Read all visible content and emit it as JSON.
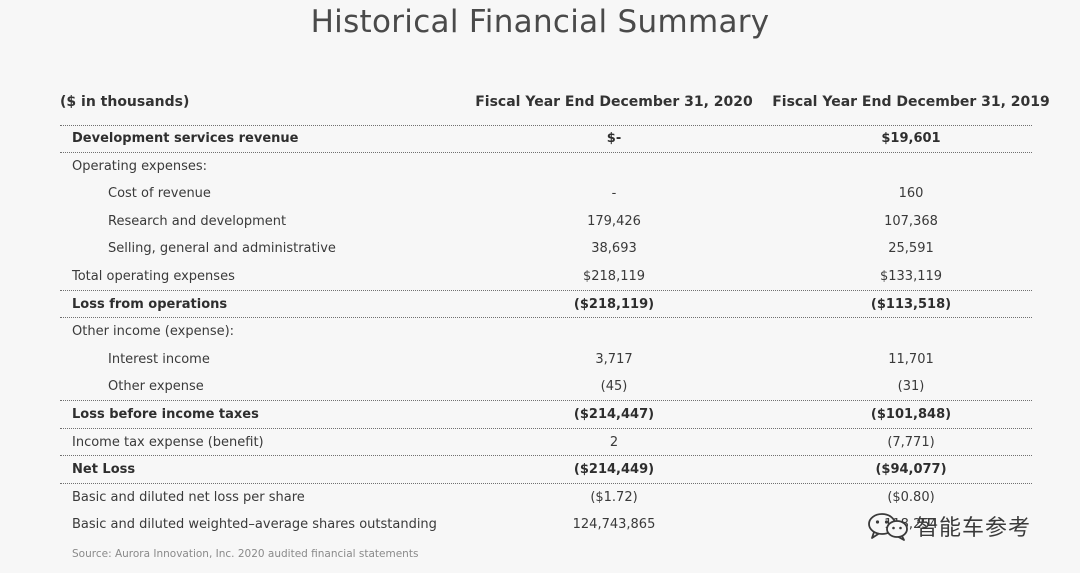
{
  "title": "Historical Financial Summary",
  "headers": {
    "unit": "($ in thousands)",
    "col_2020": "Fiscal Year End December 31, 2020",
    "col_2019": "Fiscal Year End December 31, 2019"
  },
  "rows": [
    {
      "label": "Development services revenue",
      "v2020": "$-",
      "v2019": "$19,601"
    },
    {
      "label": "Operating expenses:",
      "v2020": "",
      "v2019": ""
    },
    {
      "label": "Cost of revenue",
      "v2020": "-",
      "v2019": "160"
    },
    {
      "label": "Research and development",
      "v2020": "179,426",
      "v2019": "107,368"
    },
    {
      "label": "Selling, general and administrative",
      "v2020": "38,693",
      "v2019": "25,591"
    },
    {
      "label": "Total operating expenses",
      "v2020": "$218,119",
      "v2019": "$133,119"
    },
    {
      "label": "Loss from operations",
      "v2020": "($218,119)",
      "v2019": "($113,518)"
    },
    {
      "label": "Other income (expense):",
      "v2020": "",
      "v2019": ""
    },
    {
      "label": "Interest income",
      "v2020": "3,717",
      "v2019": "11,701"
    },
    {
      "label": "Other expense",
      "v2020": "(45)",
      "v2019": "(31)"
    },
    {
      "label": "Loss before income taxes",
      "v2020": "($214,447)",
      "v2019": "($101,848)"
    },
    {
      "label": "Income tax expense (benefit)",
      "v2020": "2",
      "v2019": "(7,771)"
    },
    {
      "label": "Net Loss",
      "v2020": "($214,449)",
      "v2019": "($94,077)"
    },
    {
      "label": "Basic and diluted net loss per share",
      "v2020": "($1.72)",
      "v2019": "($0.80)"
    },
    {
      "label": "Basic and diluted weighted–average shares outstanding",
      "v2020": "124,743,865",
      "v2019": "118,254"
    }
  ],
  "source": "Source: Aurora Innovation, Inc. 2020 audited financial statements",
  "watermark": {
    "text": "智能车参考",
    "icon": "wechat-icon"
  }
}
